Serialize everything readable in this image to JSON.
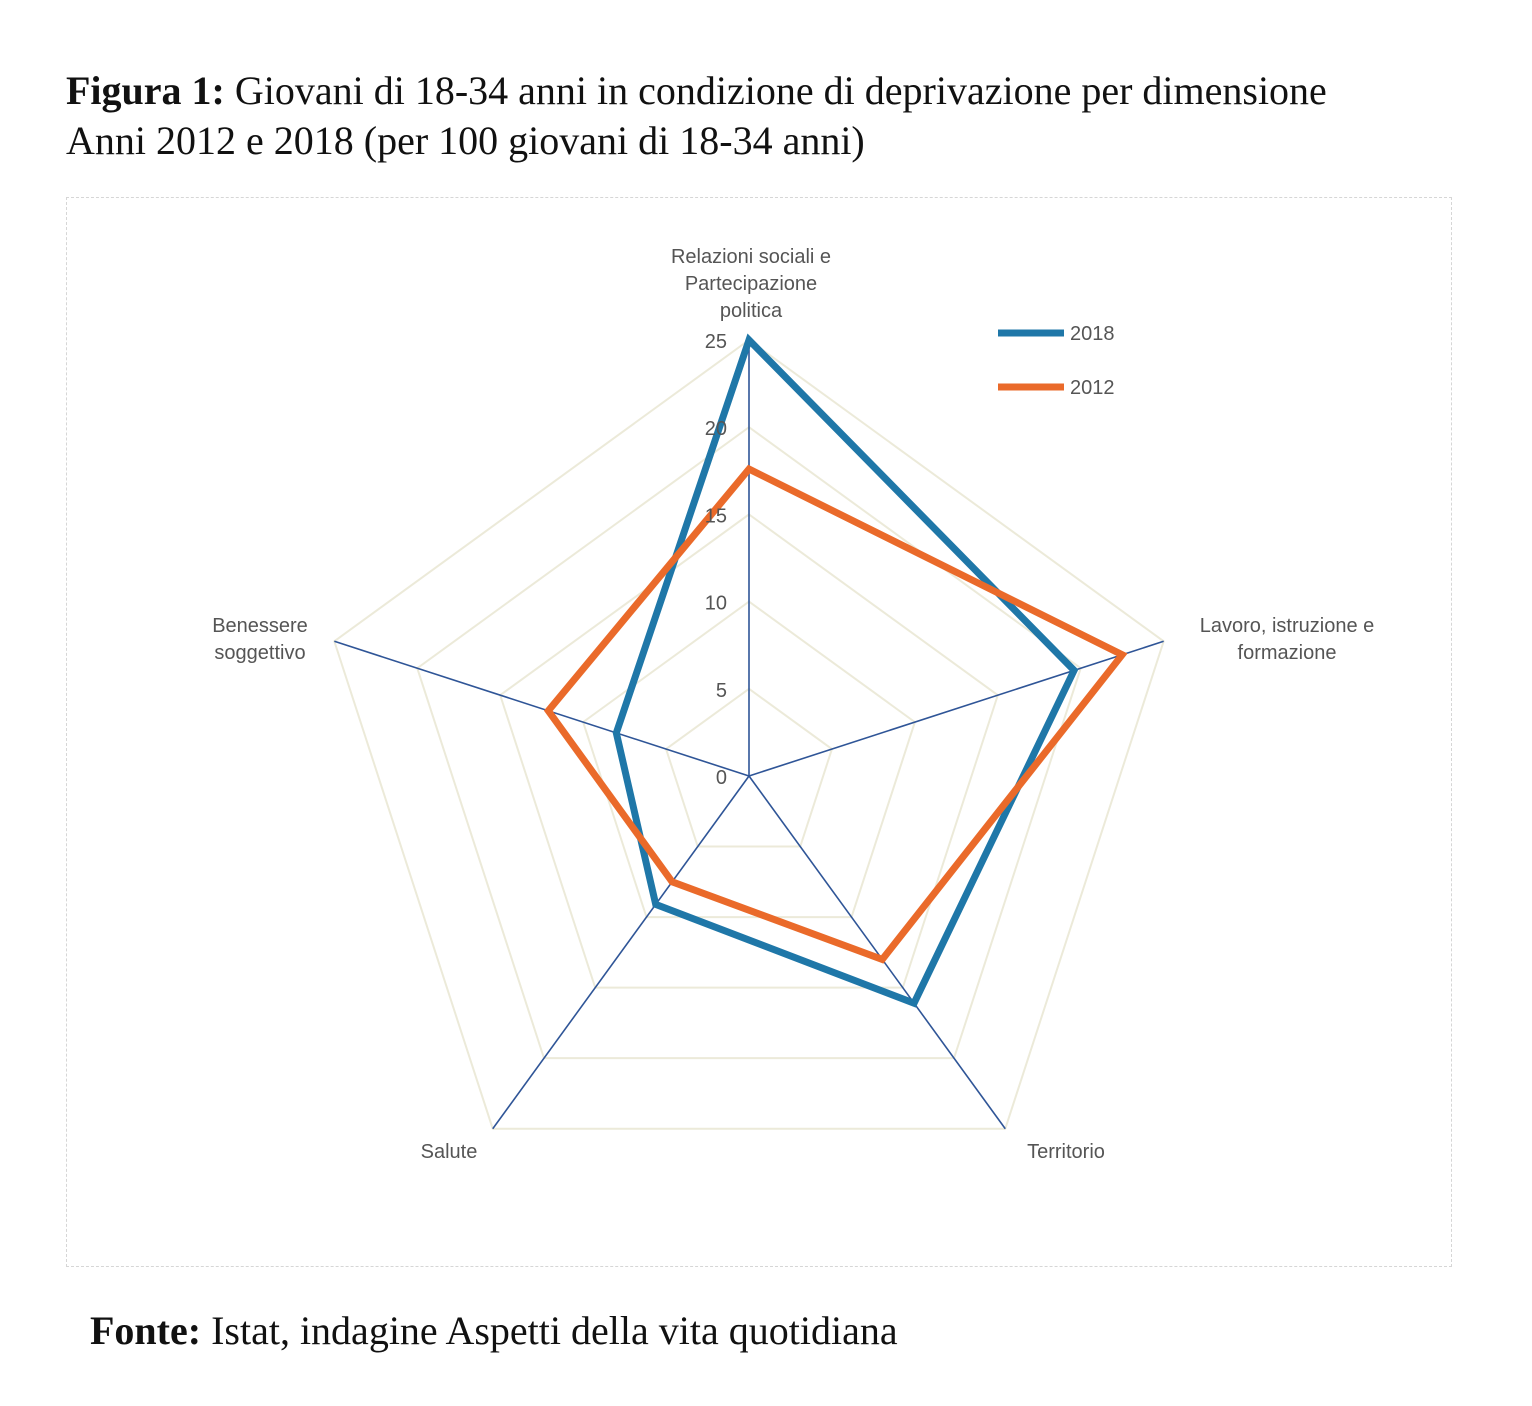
{
  "caption": {
    "label": "Figura 1:",
    "line1": " Giovani di 18-34 anni in condizione di deprivazione per dimensione",
    "line2": "Anni 2012 e 2018 (per 100 giovani di 18-34 anni)"
  },
  "source": {
    "label": "Fonte:",
    "text": " Istat, indagine Aspetti della vita quotidiana"
  },
  "chart_data": {
    "type": "radar",
    "title": "",
    "categories": [
      [
        "Relazioni sociali e",
        "Partecipazione",
        "politica"
      ],
      [
        "Lavoro, istruzione e",
        "formazione"
      ],
      [
        "Territorio"
      ],
      [
        "Salute"
      ],
      [
        "Benessere",
        "soggettivo"
      ]
    ],
    "rmax": 25,
    "ticks": [
      0,
      5,
      10,
      15,
      20,
      25
    ],
    "grid": true,
    "legend_position": "top-right",
    "series": [
      {
        "name": "2018",
        "color": "#1f77a8",
        "values": [
          25,
          19.6,
          16.1,
          9.1,
          8.0
        ]
      },
      {
        "name": "2012",
        "color": "#ea6a2a",
        "values": [
          17.6,
          22.5,
          13.0,
          7.5,
          12.1
        ]
      }
    ],
    "axis_color": "#2f5597",
    "grid_color": "#ecead9",
    "tick_color": "#555555"
  }
}
